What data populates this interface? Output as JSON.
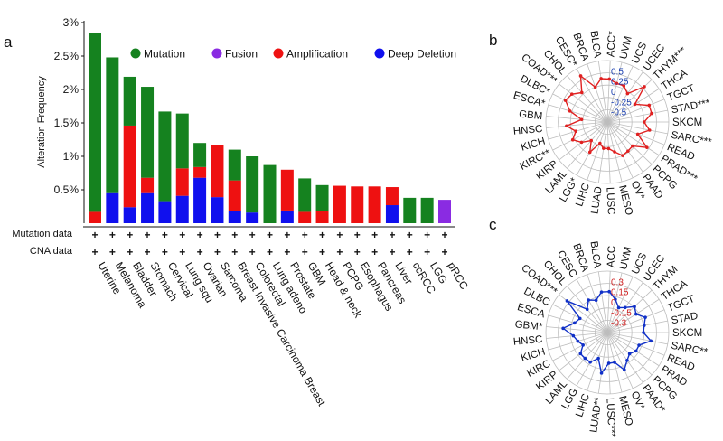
{
  "panel_labels": {
    "a": "a",
    "b": "b",
    "c": "c"
  },
  "row_labels": {
    "mutation": "Mutation data",
    "cna": "CNA data"
  },
  "plus_symbol": "+",
  "colors": {
    "mutation": "#15821f",
    "fusion": "#8a2be2",
    "amplification": "#ee1111",
    "deep_deletion": "#1010ee",
    "radar_b": "#e02020",
    "radar_c": "#1030c8",
    "tick_b": "#1a3fb0",
    "tick_c": "#d02020"
  },
  "chart_data": [
    {
      "type": "bar",
      "stacked": true,
      "title": "",
      "xlabel": "",
      "ylabel": "Alteration Frequency",
      "ylim": [
        0,
        3
      ],
      "ytick_values": [
        0.5,
        1,
        1.5,
        2,
        2.5,
        3
      ],
      "ytick_labels": [
        "0.5%",
        "1%",
        "1.5%",
        "2%",
        "2.5%",
        "3%"
      ],
      "legend": [
        {
          "key": "mutation",
          "label": "Mutation"
        },
        {
          "key": "fusion",
          "label": "Fusion"
        },
        {
          "key": "amplification",
          "label": "Amplification"
        },
        {
          "key": "deep_deletion",
          "label": "Deep Deletion"
        }
      ],
      "categories": [
        "Uterine",
        "Melanoma",
        "Bladder",
        "Stomach",
        "Cervical",
        "Lung squ",
        "Ovarian",
        "Sarcoma",
        "Breast Invasive Carcinoma Breast",
        "Colorectal",
        "Lung adeno",
        "Prostate",
        "GBM",
        "Head & neck",
        "PCPG",
        "Esophagus",
        "Pancreas",
        "Liver",
        "ccRCC",
        "LGG",
        "pRCC"
      ],
      "series": [
        {
          "key": "deep_deletion",
          "name": "Deep Deletion",
          "values": [
            0,
            0.45,
            0.24,
            0.45,
            0.33,
            0.41,
            0.68,
            0.39,
            0.18,
            0.16,
            0,
            0.19,
            0,
            0,
            0,
            0,
            0,
            0.27,
            0,
            0,
            0
          ]
        },
        {
          "key": "amplification",
          "name": "Amplification",
          "values": [
            0.17,
            0,
            1.22,
            0.23,
            0,
            0.41,
            0.16,
            0.78,
            0.46,
            0,
            0,
            0.61,
            0.17,
            0.18,
            0.56,
            0.55,
            0.55,
            0.27,
            0,
            0,
            0
          ]
        },
        {
          "key": "mutation",
          "name": "Mutation",
          "values": [
            2.67,
            2.03,
            0.73,
            1.36,
            1.34,
            0.82,
            0.36,
            0,
            0.46,
            0.84,
            0.87,
            0,
            0.5,
            0.39,
            0,
            0,
            0,
            0,
            0.38,
            0.38,
            0
          ]
        },
        {
          "key": "fusion",
          "name": "Fusion",
          "values": [
            0,
            0,
            0,
            0,
            0,
            0,
            0,
            0,
            0,
            0,
            0,
            0,
            0,
            0,
            0,
            0,
            0,
            0,
            0,
            0,
            0.35
          ]
        }
      ],
      "mutation_data_row": [
        "+",
        "+",
        "+",
        "+",
        "+",
        "+",
        "+",
        "+",
        "+",
        "+",
        "+",
        "+",
        "+",
        "+",
        "+",
        "+",
        "+",
        "+",
        "+",
        "+",
        "+"
      ],
      "cna_data_row": [
        "+",
        "+",
        "+",
        "+",
        "+",
        "+",
        "+",
        "+",
        "+",
        "+",
        "+",
        "+",
        "+",
        "+",
        "+",
        "+",
        "+",
        "+",
        "+",
        "+",
        "+"
      ]
    },
    {
      "type": "radar",
      "panel": "b",
      "rlim": [
        -0.75,
        0.75
      ],
      "tick_values": [
        0.5,
        0.25,
        0,
        -0.25,
        -0.5
      ],
      "tick_labels": [
        "0.5",
        "0.25",
        "0",
        "-0.25",
        "-0.5"
      ],
      "categories": [
        "ACC*",
        "UVM",
        "UCS",
        "UCEC",
        "THYM***",
        "THCA",
        "TGCT",
        "STAD***",
        "SKCM",
        "SARC***",
        "READ",
        "PRAD***",
        "PCPG",
        "PAAD",
        "OV*",
        "MESO",
        "LUSC",
        "LUAD",
        "LIHC",
        "LGG*",
        "LAML",
        "KIRP",
        "KIRC**",
        "KICH",
        "HNSC",
        "GBM",
        "ESCA*",
        "DLBC*",
        "COAD***",
        "CHOL",
        "CESC*",
        "BRCA",
        "BLCA"
      ],
      "values": [
        0.3,
        0.22,
        0.22,
        0.1,
        0.5,
        0.05,
        0.35,
        0.35,
        0.15,
        0.3,
        0.05,
        0.4,
        0.1,
        0.12,
        0.15,
        0.0,
        -0.1,
        -0.1,
        -0.2,
        0.1,
        -0.15,
        0.05,
        0.2,
        0.05,
        0.25,
        -0.12,
        0.2,
        0.4,
        0.35,
        0.2,
        0.55,
        0.15,
        0.32
      ]
    },
    {
      "type": "radar",
      "panel": "c",
      "rlim": [
        -0.45,
        0.45
      ],
      "tick_values": [
        0.3,
        0.15,
        0,
        -0.15,
        -0.3
      ],
      "tick_labels": [
        "0.3",
        "0.15",
        "0",
        "-0.15",
        "-0.3"
      ],
      "categories": [
        "ACC",
        "UVM",
        "UCS",
        "UCEC",
        "THYM",
        "THCA",
        "TGCT",
        "STAD",
        "SKCM",
        "SARC**",
        "READ",
        "PRAD",
        "PCPG",
        "PAAD*",
        "OV*",
        "MESO",
        "LUSC***",
        "LUAD**",
        "LIHC",
        "LGG",
        "LAML",
        "KIRP",
        "KIRC",
        "KICH",
        "HNSC",
        "GBM*",
        "ESCA",
        "DLBC",
        "COAD***",
        "CHOL",
        "CESC",
        "BRCA",
        "BLCA"
      ],
      "values": [
        0.15,
        0.05,
        -0.05,
        0.0,
        0.1,
        0.05,
        0.15,
        0.1,
        0.08,
        0.2,
        0.05,
        0.05,
        0.0,
        0.05,
        0.15,
        0.0,
        0.0,
        0.15,
        -0.05,
        0.05,
        0.05,
        0.05,
        -0.05,
        0.0,
        0.05,
        0.2,
        0.05,
        0.0,
        0.3,
        0.0,
        0.1,
        0.05,
        0.15
      ]
    }
  ]
}
